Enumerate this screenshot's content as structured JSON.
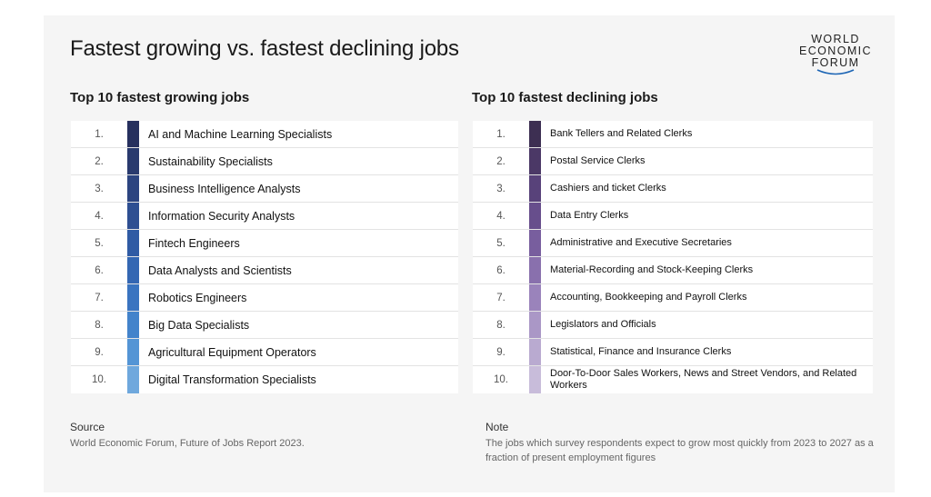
{
  "title": "Fastest growing vs. fastest declining jobs",
  "logo": {
    "line1": "WORLD",
    "line2": "ECONOMIC",
    "line3": "FORUM"
  },
  "growing": {
    "heading": "Top 10 fastest growing jobs",
    "items": [
      {
        "rank": "1.",
        "label": "AI and Machine Learning Specialists",
        "color": "#26305e"
      },
      {
        "rank": "2.",
        "label": "Sustainability Specialists",
        "color": "#293a6e"
      },
      {
        "rank": "3.",
        "label": "Business Intelligence Analysts",
        "color": "#2c4480"
      },
      {
        "rank": "4.",
        "label": "Information Security Analysts",
        "color": "#2e4f92"
      },
      {
        "rank": "5.",
        "label": "Fintech Engineers",
        "color": "#305ba4"
      },
      {
        "rank": "6.",
        "label": "Data Analysts and Scientists",
        "color": "#3467b3"
      },
      {
        "rank": "7.",
        "label": "Robotics Engineers",
        "color": "#3a74c0"
      },
      {
        "rank": "8.",
        "label": "Big Data Specialists",
        "color": "#4383cb"
      },
      {
        "rank": "9.",
        "label": "Agricultural Equipment Operators",
        "color": "#5495d5"
      },
      {
        "rank": "10.",
        "label": "Digital Transformation Specialists",
        "color": "#6fa8dd"
      }
    ]
  },
  "declining": {
    "heading": "Top 10 fastest declining jobs",
    "items": [
      {
        "rank": "1.",
        "label": "Bank Tellers and Related Clerks",
        "color": "#3d2f52"
      },
      {
        "rank": "2.",
        "label": "Postal Service Clerks",
        "color": "#4b3866"
      },
      {
        "rank": "3.",
        "label": "Cashiers and ticket Clerks",
        "color": "#58427a"
      },
      {
        "rank": "4.",
        "label": "Data Entry Clerks",
        "color": "#674e8c"
      },
      {
        "rank": "5.",
        "label": "Administrative and Executive Secretaries",
        "color": "#785e9e"
      },
      {
        "rank": "6.",
        "label": "Material-Recording and Stock-Keeping Clerks",
        "color": "#8970ad"
      },
      {
        "rank": "7.",
        "label": "Accounting, Bookkeeping and Payroll Clerks",
        "color": "#9a83bb"
      },
      {
        "rank": "8.",
        "label": "Legislators and Officials",
        "color": "#aa97c6"
      },
      {
        "rank": "9.",
        "label": "Statistical, Finance and Insurance Clerks",
        "color": "#b9aad0"
      },
      {
        "rank": "10.",
        "label": "Door-To-Door Sales Workers, News and Street Vendors, and Related Workers",
        "color": "#c8bcda"
      }
    ]
  },
  "source": {
    "heading": "Source",
    "text": "World Economic Forum, Future of Jobs Report 2023."
  },
  "note": {
    "heading": "Note",
    "text": "The jobs which survey respondents expect to grow most quickly from 2023 to 2027 as a fraction of present employment figures"
  }
}
